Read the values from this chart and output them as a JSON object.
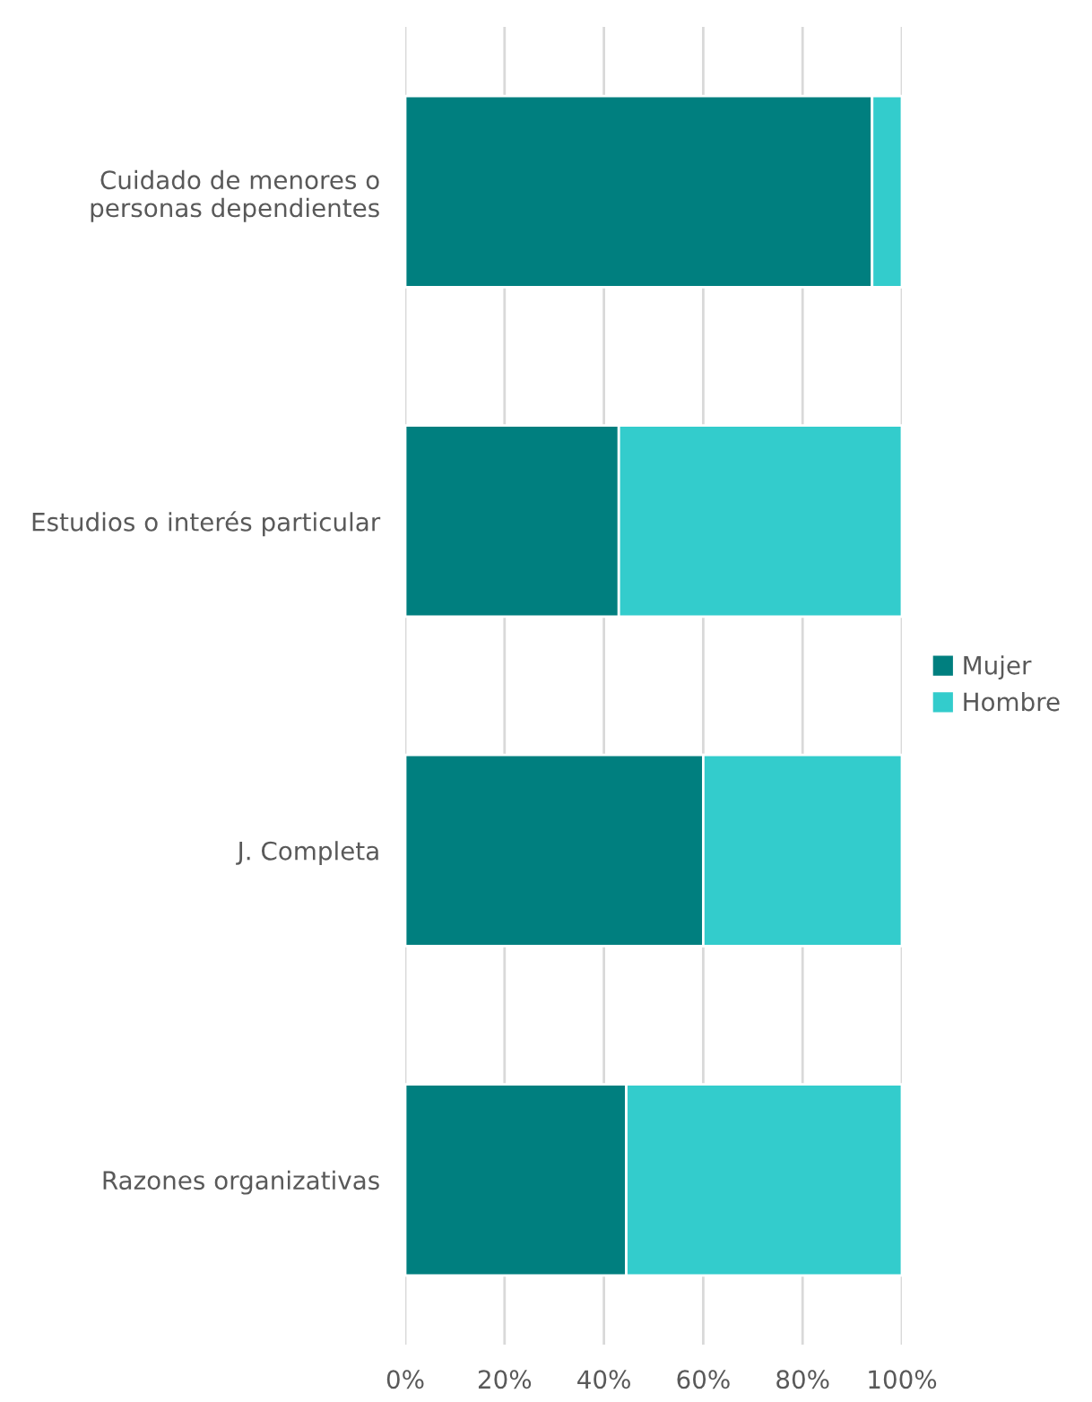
{
  "chart_data": {
    "type": "bar",
    "orientation": "horizontal",
    "stacked": true,
    "categories": [
      "Cuidado de menores o personas dependientes",
      "Estudios o interés particular",
      "J. Completa",
      "Razones organizativas"
    ],
    "series": [
      {
        "name": "Mujer",
        "color": "#007f7f",
        "values": [
          94,
          43,
          60,
          44.5
        ]
      },
      {
        "name": "Hombre",
        "color": "#33cccc",
        "values": [
          6,
          57,
          40,
          55.5
        ]
      }
    ],
    "xlim": [
      0,
      100
    ],
    "xticks": [
      {
        "value": 0,
        "label": "0%"
      },
      {
        "value": 20,
        "label": "20%"
      },
      {
        "value": 40,
        "label": "40%"
      },
      {
        "value": 60,
        "label": "60%"
      },
      {
        "value": 80,
        "label": "80%"
      },
      {
        "value": 100,
        "label": "100%"
      }
    ],
    "grid": "x",
    "legend": "right"
  }
}
